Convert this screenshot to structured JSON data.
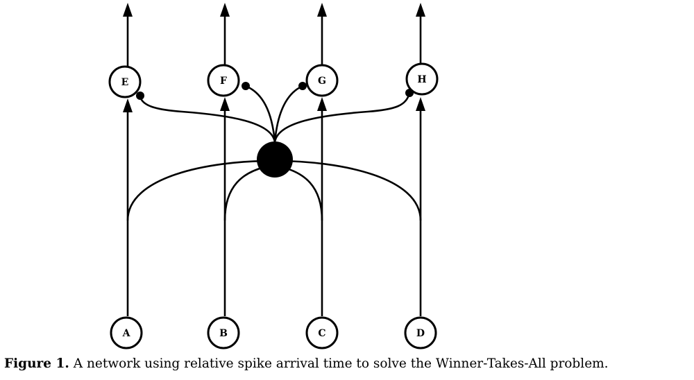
{
  "nodes": {
    "output": [
      {
        "id": "E",
        "label": "E"
      },
      {
        "id": "F",
        "label": "F"
      },
      {
        "id": "G",
        "label": "G"
      },
      {
        "id": "H",
        "label": "H"
      }
    ],
    "input": [
      {
        "id": "A",
        "label": "A"
      },
      {
        "id": "B",
        "label": "B"
      },
      {
        "id": "C",
        "label": "C"
      },
      {
        "id": "D",
        "label": "D"
      }
    ],
    "inhibitory_hub": {
      "id": "inhibitory-neuron",
      "fill": "#000000"
    }
  },
  "connections": {
    "excitatory": [
      {
        "from": "A",
        "to": "E"
      },
      {
        "from": "B",
        "to": "F"
      },
      {
        "from": "C",
        "to": "G"
      },
      {
        "from": "D",
        "to": "H"
      }
    ],
    "to_hub": [
      "A",
      "B",
      "C",
      "D"
    ],
    "inhibitory": [
      {
        "from": "inhibitory-neuron",
        "to": "E"
      },
      {
        "from": "inhibitory-neuron",
        "to": "F"
      },
      {
        "from": "inhibitory-neuron",
        "to": "G"
      },
      {
        "from": "inhibitory-neuron",
        "to": "H"
      }
    ],
    "outputs_upward": [
      "E",
      "F",
      "G",
      "H"
    ]
  },
  "caption": {
    "label": "Figure 1.",
    "text": "A network using relative spike arrival time to solve the Winner-Takes-All problem."
  }
}
